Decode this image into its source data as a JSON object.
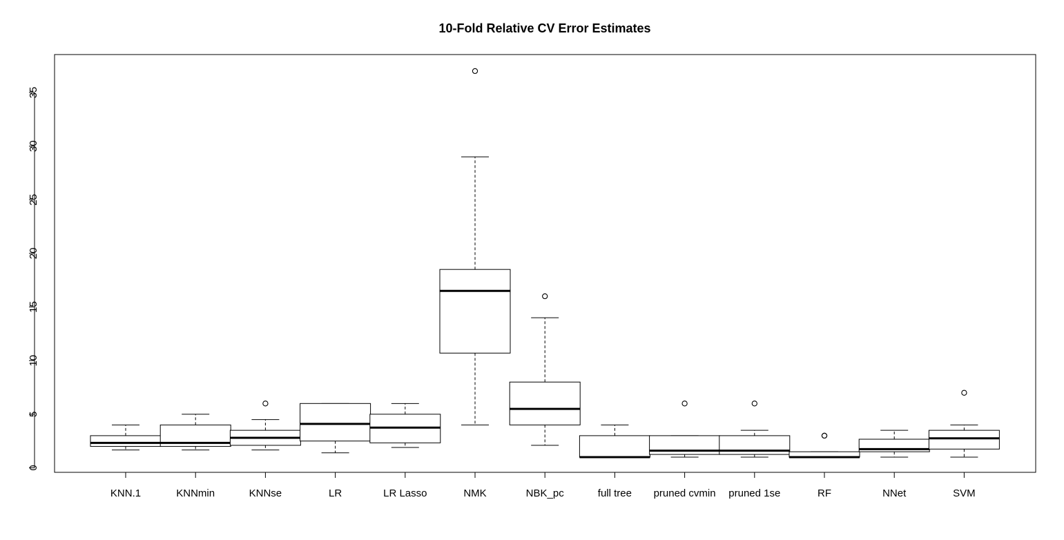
{
  "chart_data": {
    "type": "boxplot",
    "title": "10-Fold Relative CV Error Estimates",
    "xlabel": "",
    "ylabel": "",
    "ylim": [
      -0.5,
      38
    ],
    "yticks": [
      0,
      5,
      10,
      15,
      20,
      25,
      30,
      35
    ],
    "grid": false,
    "legend": "none",
    "categories": [
      "KNN.1",
      "KNNmin",
      "KNNse",
      "LR",
      "LR Lasso",
      "NMK",
      "NBK_pc",
      "full tree",
      "pruned cvmin",
      "pruned 1se",
      "RF",
      "NNet",
      "SVM"
    ],
    "boxes": [
      {
        "name": "KNN.1",
        "whisker_low": 1.67,
        "q1": 2.0,
        "median": 2.33,
        "q3": 3.0,
        "whisker_high": 4.0,
        "outliers": []
      },
      {
        "name": "KNNmin",
        "whisker_low": 1.67,
        "q1": 2.0,
        "median": 2.33,
        "q3": 4.0,
        "whisker_high": 5.0,
        "outliers": []
      },
      {
        "name": "KNNse",
        "whisker_low": 1.67,
        "q1": 2.1,
        "median": 2.8,
        "q3": 3.5,
        "whisker_high": 4.5,
        "outliers": [
          6.0
        ]
      },
      {
        "name": "LR",
        "whisker_low": 1.4,
        "q1": 2.5,
        "median": 4.1,
        "q3": 6.0,
        "whisker_high": 6.0,
        "outliers": []
      },
      {
        "name": "LR Lasso",
        "whisker_low": 1.9,
        "q1": 2.33,
        "median": 3.75,
        "q3": 5.0,
        "whisker_high": 6.0,
        "outliers": []
      },
      {
        "name": "NMK",
        "whisker_low": 4.0,
        "q1": 10.7,
        "median": 16.5,
        "q3": 18.5,
        "whisker_high": 29.0,
        "outliers": [
          37.0
        ]
      },
      {
        "name": "NBK_pc",
        "whisker_low": 2.1,
        "q1": 4.0,
        "median": 5.5,
        "q3": 8.0,
        "whisker_high": 14.0,
        "outliers": [
          16.0
        ]
      },
      {
        "name": "full tree",
        "whisker_low": 1.0,
        "q1": 1.0,
        "median": 1.0,
        "q3": 3.0,
        "whisker_high": 4.0,
        "outliers": []
      },
      {
        "name": "pruned cvmin",
        "whisker_low": 1.0,
        "q1": 1.25,
        "median": 1.6,
        "q3": 3.0,
        "whisker_high": 3.0,
        "outliers": [
          6.0
        ]
      },
      {
        "name": "pruned 1se",
        "whisker_low": 1.0,
        "q1": 1.25,
        "median": 1.6,
        "q3": 3.0,
        "whisker_high": 3.5,
        "outliers": [
          6.0
        ]
      },
      {
        "name": "RF",
        "whisker_low": 1.0,
        "q1": 1.0,
        "median": 1.0,
        "q3": 1.5,
        "whisker_high": 1.5,
        "outliers": [
          3.0,
          3.0
        ]
      },
      {
        "name": "NNet",
        "whisker_low": 1.0,
        "q1": 1.5,
        "median": 1.75,
        "q3": 2.67,
        "whisker_high": 3.5,
        "outliers": []
      },
      {
        "name": "SVM",
        "whisker_low": 1.0,
        "q1": 1.75,
        "median": 2.75,
        "q3": 3.5,
        "whisker_high": 4.0,
        "outliers": [
          7.0
        ]
      }
    ]
  }
}
